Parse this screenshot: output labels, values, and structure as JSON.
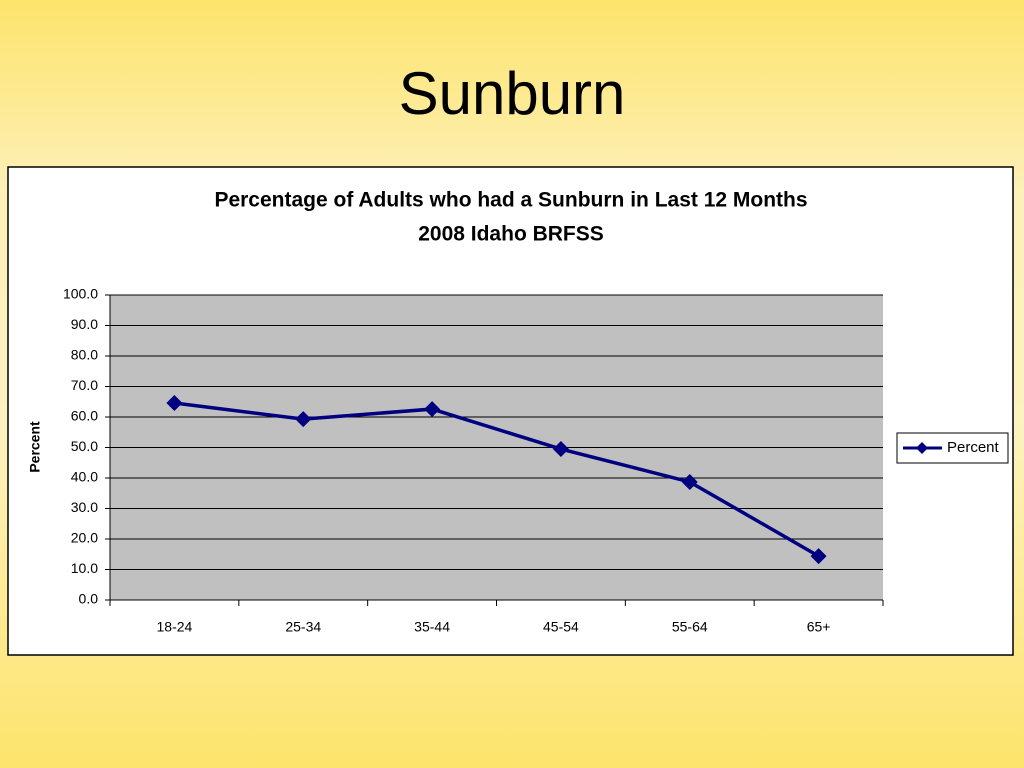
{
  "slide_title": "Sunburn",
  "chart_data": {
    "type": "line",
    "title": "Percentage of Adults who had a Sunburn in Last 12 Months",
    "subtitle": "2008 Idaho BRFSS",
    "y_label": "Percent",
    "categories": [
      "18-24",
      "25-34",
      "35-44",
      "45-54",
      "55-64",
      "65+"
    ],
    "series": [
      {
        "name": "Percent",
        "color": "#000080",
        "values": [
          64.6,
          59.3,
          62.6,
          49.5,
          38.7,
          14.4
        ]
      }
    ],
    "ylim": [
      0,
      100
    ],
    "yticks": [
      {
        "value": 0,
        "label": "0.0"
      },
      {
        "value": 10,
        "label": "10.0"
      },
      {
        "value": 20,
        "label": "20.0"
      },
      {
        "value": 30,
        "label": "30.0"
      },
      {
        "value": 40,
        "label": "40.0"
      },
      {
        "value": 50,
        "label": "50.0"
      },
      {
        "value": 60,
        "label": "60.0"
      },
      {
        "value": 70,
        "label": "70.0"
      },
      {
        "value": 80,
        "label": "80.0"
      },
      {
        "value": 90,
        "label": "90.0"
      },
      {
        "value": 100,
        "label": "100.0"
      }
    ],
    "grid": true,
    "plot_background": "#c0c0c0",
    "legend": "right"
  }
}
